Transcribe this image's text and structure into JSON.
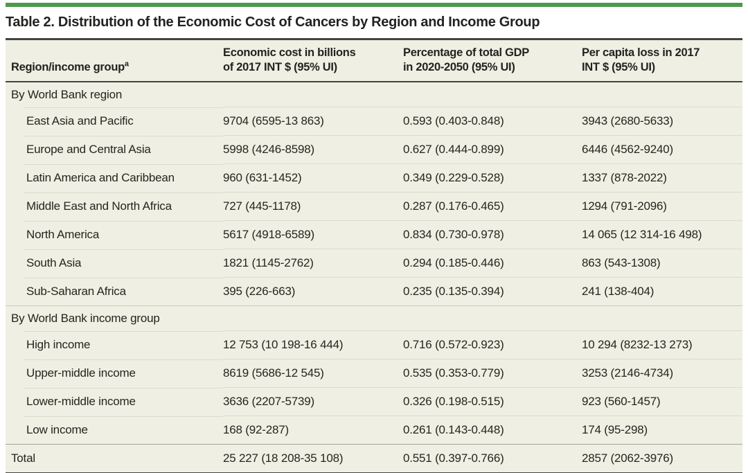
{
  "title": "Table 2. Distribution of the Economic Cost of Cancers by Region and Income Group",
  "colors": {
    "accent_bar": "#4a9a4d",
    "table_background": "#f0efe3",
    "rule_dark": "#44433f",
    "row_divider": "#dbdacb",
    "section_divider": "#c9c8b9",
    "total_divider": "#a3a296"
  },
  "columns": {
    "region": {
      "label": "Region/income group",
      "sup": "a"
    },
    "cost": {
      "line1": "Economic cost in billions",
      "line2": "of 2017 INT $ (95% UI)"
    },
    "gdp": {
      "line1": "Percentage of total GDP",
      "line2": "in 2020-2050 (95% UI)"
    },
    "per_capita": {
      "line1": "Per capita loss in 2017",
      "line2": "INT $ (95% UI)"
    }
  },
  "sections": [
    {
      "header": "By World Bank region",
      "rows": [
        {
          "name": "East Asia and Pacific",
          "cost": "9704 (6595-13 863)",
          "gdp": "0.593 (0.403-0.848)",
          "per_capita": "3943 (2680-5633)"
        },
        {
          "name": "Europe and Central Asia",
          "cost": "5998 (4246-8598)",
          "gdp": "0.627 (0.444-0.899)",
          "per_capita": "6446 (4562-9240)"
        },
        {
          "name": "Latin America and Caribbean",
          "cost": "960 (631-1452)",
          "gdp": "0.349 (0.229-0.528)",
          "per_capita": "1337 (878-2022)"
        },
        {
          "name": "Middle East and North Africa",
          "cost": "727 (445-1178)",
          "gdp": "0.287 (0.176-0.465)",
          "per_capita": "1294 (791-2096)"
        },
        {
          "name": "North America",
          "cost": "5617 (4918-6589)",
          "gdp": "0.834 (0.730-0.978)",
          "per_capita": "14 065 (12 314-16 498)"
        },
        {
          "name": "South Asia",
          "cost": "1821 (1145-2762)",
          "gdp": "0.294 (0.185-0.446)",
          "per_capita": "863 (543-1308)"
        },
        {
          "name": "Sub-Saharan Africa",
          "cost": "395 (226-663)",
          "gdp": "0.235 (0.135-0.394)",
          "per_capita": "241 (138-404)"
        }
      ]
    },
    {
      "header": "By World Bank income group",
      "rows": [
        {
          "name": "High income",
          "cost": "12 753 (10 198-16 444)",
          "gdp": "0.716 (0.572-0.923)",
          "per_capita": "10 294 (8232-13 273)"
        },
        {
          "name": "Upper-middle income",
          "cost": "8619 (5686-12 545)",
          "gdp": "0.535 (0.353-0.779)",
          "per_capita": "3253 (2146-4734)"
        },
        {
          "name": "Lower-middle income",
          "cost": "3636 (2207-5739)",
          "gdp": "0.326 (0.198-0.515)",
          "per_capita": "923 (560-1457)"
        },
        {
          "name": "Low income",
          "cost": "168 (92-287)",
          "gdp": "0.261 (0.143-0.448)",
          "per_capita": "174 (95-298)"
        }
      ]
    }
  ],
  "total": {
    "name": "Total",
    "cost": "25 227 (18 208-35 108)",
    "gdp": "0.551 (0.397-0.766)",
    "per_capita": "2857 (2062-3976)"
  }
}
